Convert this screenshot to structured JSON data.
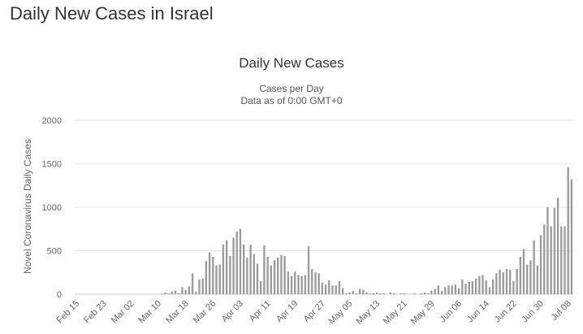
{
  "page": {
    "heading": "Daily New Cases in Israel"
  },
  "chart_data": {
    "type": "bar",
    "title": "Daily New Cases",
    "subtitle": "Cases per Day",
    "subtitle2": "Data as of 0:00 GMT+0",
    "xlabel": "",
    "ylabel": "Novel Coronavirus Daily Cases",
    "ylim": [
      0,
      2000
    ],
    "yticks": [
      0,
      500,
      1000,
      1500,
      2000
    ],
    "grid": true,
    "legend": "none",
    "bar_color": "#9a9a9a",
    "categories": [
      "Feb 15",
      "Feb 16",
      "Feb 17",
      "Feb 18",
      "Feb 19",
      "Feb 20",
      "Feb 21",
      "Feb 22",
      "Feb 23",
      "Feb 24",
      "Feb 25",
      "Feb 26",
      "Feb 27",
      "Feb 28",
      "Feb 29",
      "Mar 01",
      "Mar 02",
      "Mar 03",
      "Mar 04",
      "Mar 05",
      "Mar 06",
      "Mar 07",
      "Mar 08",
      "Mar 09",
      "Mar 10",
      "Mar 11",
      "Mar 12",
      "Mar 13",
      "Mar 14",
      "Mar 15",
      "Mar 16",
      "Mar 17",
      "Mar 18",
      "Mar 19",
      "Mar 20",
      "Mar 21",
      "Mar 22",
      "Mar 23",
      "Mar 24",
      "Mar 25",
      "Mar 26",
      "Mar 27",
      "Mar 28",
      "Mar 29",
      "Mar 30",
      "Mar 31",
      "Apr 01",
      "Apr 02",
      "Apr 03",
      "Apr 04",
      "Apr 05",
      "Apr 06",
      "Apr 07",
      "Apr 08",
      "Apr 09",
      "Apr 10",
      "Apr 11",
      "Apr 12",
      "Apr 13",
      "Apr 14",
      "Apr 15",
      "Apr 16",
      "Apr 17",
      "Apr 18",
      "Apr 19",
      "Apr 20",
      "Apr 21",
      "Apr 22",
      "Apr 23",
      "Apr 24",
      "Apr 25",
      "Apr 26",
      "Apr 27",
      "Apr 28",
      "Apr 29",
      "Apr 30",
      "May 01",
      "May 02",
      "May 03",
      "May 04",
      "May 05",
      "May 06",
      "May 07",
      "May 08",
      "May 09",
      "May 10",
      "May 11",
      "May 12",
      "May 13",
      "May 14",
      "May 15",
      "May 16",
      "May 17",
      "May 18",
      "May 19",
      "May 20",
      "May 21",
      "May 22",
      "May 23",
      "May 24",
      "May 25",
      "May 26",
      "May 27",
      "May 28",
      "May 29",
      "May 30",
      "May 31",
      "Jun 01",
      "Jun 02",
      "Jun 03",
      "Jun 04",
      "Jun 05",
      "Jun 06",
      "Jun 07",
      "Jun 08",
      "Jun 09",
      "Jun 10",
      "Jun 11",
      "Jun 12",
      "Jun 13",
      "Jun 14",
      "Jun 15",
      "Jun 16",
      "Jun 17",
      "Jun 18",
      "Jun 19",
      "Jun 20",
      "Jun 21",
      "Jun 22",
      "Jun 23",
      "Jun 24",
      "Jun 25",
      "Jun 26",
      "Jun 27",
      "Jun 28",
      "Jun 29",
      "Jun 30",
      "Jul 01",
      "Jul 02",
      "Jul 03",
      "Jul 04",
      "Jul 05",
      "Jul 06",
      "Jul 07",
      "Jul 08",
      "Jul 09"
    ],
    "x_tick_labels": [
      "Feb 15",
      "Feb 23",
      "Mar 02",
      "Mar 10",
      "Mar 18",
      "Mar 26",
      "Apr 03",
      "Apr 11",
      "Apr 19",
      "Apr 27",
      "May 05",
      "May 13",
      "May 21",
      "May 29",
      "Jun 06",
      "Jun 14",
      "Jun 22",
      "Jun 30",
      "Jul 08"
    ],
    "values": [
      0,
      0,
      0,
      0,
      0,
      0,
      0,
      0,
      0,
      0,
      0,
      0,
      0,
      0,
      0,
      0,
      0,
      0,
      0,
      0,
      0,
      0,
      0,
      0,
      0,
      5,
      20,
      10,
      30,
      40,
      10,
      80,
      50,
      90,
      240,
      30,
      170,
      180,
      380,
      480,
      430,
      330,
      340,
      570,
      620,
      440,
      650,
      720,
      750,
      570,
      420,
      570,
      460,
      350,
      150,
      560,
      430,
      330,
      390,
      420,
      450,
      440,
      260,
      210,
      260,
      220,
      210,
      220,
      550,
      290,
      250,
      240,
      130,
      110,
      160,
      100,
      100,
      150,
      70,
      10,
      20,
      40,
      10,
      60,
      50,
      20,
      10,
      10,
      20,
      10,
      10,
      0,
      20,
      10,
      0,
      10,
      10,
      0,
      0,
      10,
      0,
      10,
      20,
      10,
      40,
      60,
      100,
      40,
      80,
      100,
      100,
      110,
      70,
      170,
      120,
      140,
      150,
      180,
      210,
      220,
      160,
      80,
      170,
      240,
      280,
      250,
      290,
      280,
      150,
      290,
      430,
      520,
      340,
      390,
      620,
      330,
      680,
      800,
      1000,
      780,
      990,
      1110,
      780,
      780,
      1460,
      1320
    ]
  }
}
